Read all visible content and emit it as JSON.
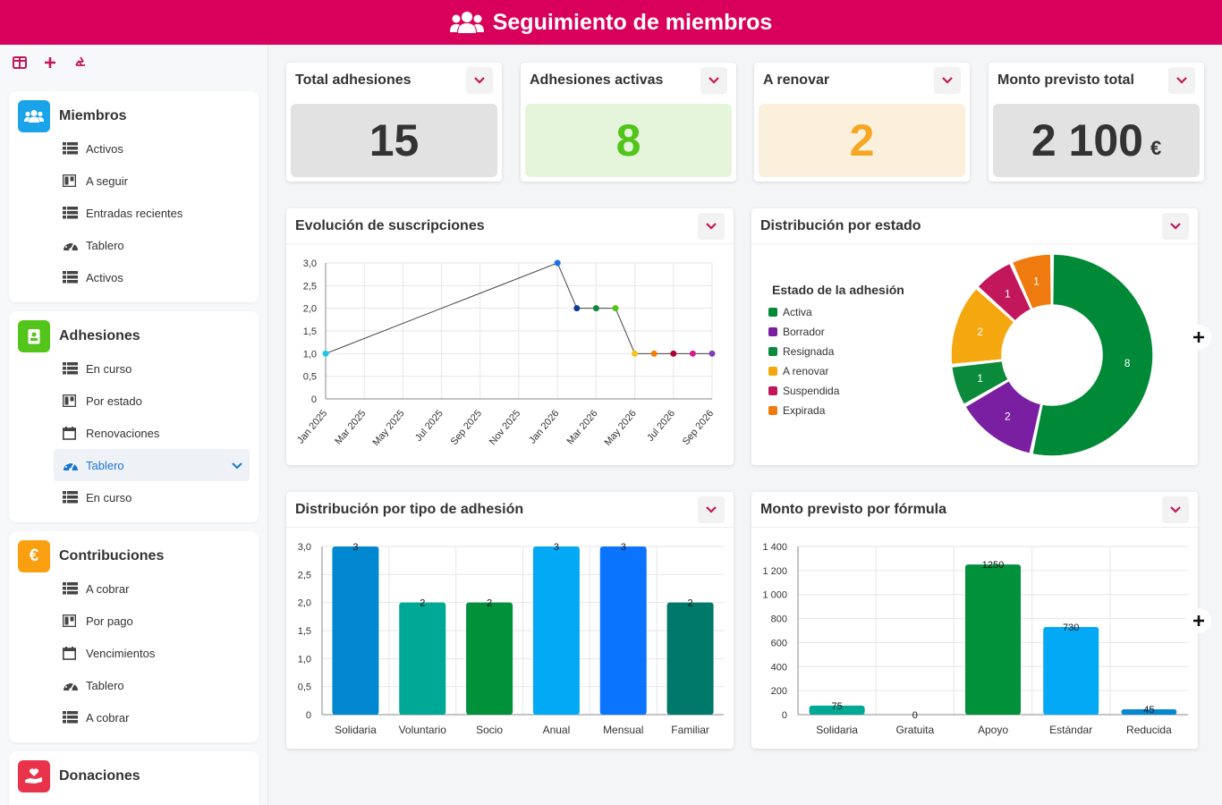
{
  "header": {
    "title": "Seguimiento de miembros"
  },
  "sidebar": {
    "sections": [
      {
        "title": "Miembros",
        "color": "#1aa3e8",
        "icon": "users-icon",
        "items": [
          {
            "label": "Activos",
            "icon": "table-icon"
          },
          {
            "label": "A seguir",
            "icon": "kanban-icon"
          },
          {
            "label": "Entradas recientes",
            "icon": "table-icon"
          },
          {
            "label": "Tablero",
            "icon": "dashboard-icon"
          },
          {
            "label": "Activos",
            "icon": "table-icon"
          }
        ]
      },
      {
        "title": "Adhesiones",
        "color": "#52c41a",
        "icon": "id-card-icon",
        "items": [
          {
            "label": "En curso",
            "icon": "table-icon"
          },
          {
            "label": "Por estado",
            "icon": "kanban-icon"
          },
          {
            "label": "Renovaciones",
            "icon": "calendar-icon"
          },
          {
            "label": "Tablero",
            "icon": "dashboard-icon",
            "active": true
          },
          {
            "label": "En curso",
            "icon": "table-icon"
          }
        ]
      },
      {
        "title": "Contribuciones",
        "color": "#fa9f10",
        "icon": "euro-icon",
        "items": [
          {
            "label": "A cobrar",
            "icon": "table-icon"
          },
          {
            "label": "Por pago",
            "icon": "kanban-icon"
          },
          {
            "label": "Vencimientos",
            "icon": "calendar-icon"
          },
          {
            "label": "Tablero",
            "icon": "dashboard-icon"
          },
          {
            "label": "A cobrar",
            "icon": "table-icon"
          }
        ]
      },
      {
        "title": "Donaciones",
        "color": "#e8334a",
        "icon": "donation-icon",
        "items": []
      }
    ]
  },
  "kpis": [
    {
      "title": "Total adhesiones",
      "value": "15",
      "unit": "",
      "bg": "#e2e2e2",
      "fg": "#333333"
    },
    {
      "title": "Adhesiones activas",
      "value": "8",
      "unit": "",
      "bg": "#e4f5dc",
      "fg": "#52c41a"
    },
    {
      "title": "A renovar",
      "value": "2",
      "unit": "",
      "bg": "#fbf0dc",
      "fg": "#f5a623"
    },
    {
      "title": "Monto previsto total",
      "value": "2 100",
      "unit": "€",
      "bg": "#e2e2e2",
      "fg": "#333333"
    }
  ],
  "charts": {
    "line_title": "Evolución de suscripciones",
    "donut_title": "Distribución por estado",
    "bar1_title": "Distribución por tipo de adhesión",
    "bar2_title": "Monto previsto por fórmula"
  },
  "chart_data": [
    {
      "type": "line",
      "x_ticks": [
        "Jan 2025",
        "Mar 2025",
        "May 2025",
        "Jul 2025",
        "Sep 2025",
        "Nov 2025",
        "Jan 2026",
        "Mar 2026",
        "May 2026",
        "Jul 2026",
        "Sep 2026"
      ],
      "points": [
        {
          "x": "2025-01",
          "y": 1,
          "color": "#1ec8e8"
        },
        {
          "x": "2026-01",
          "y": 3,
          "color": "#1a73e8"
        },
        {
          "x": "2026-02",
          "y": 2,
          "color": "#0d3c91"
        },
        {
          "x": "2026-03",
          "y": 2,
          "color": "#0b8a3b"
        },
        {
          "x": "2026-04",
          "y": 2,
          "color": "#52c41a"
        },
        {
          "x": "2026-05",
          "y": 1,
          "color": "#f5c518"
        },
        {
          "x": "2026-06",
          "y": 1,
          "color": "#f57c00"
        },
        {
          "x": "2026-07",
          "y": 1,
          "color": "#b0003a"
        },
        {
          "x": "2026-08",
          "y": 1,
          "color": "#d81b8a"
        },
        {
          "x": "2026-09",
          "y": 1,
          "color": "#7b3fb5"
        }
      ],
      "ylim": [
        0,
        3
      ],
      "y_ticks": [
        "0",
        "0,5",
        "1,0",
        "1,5",
        "2,0",
        "2,5",
        "3,0"
      ]
    },
    {
      "type": "pie",
      "legend_title": "Estado de la adhesión",
      "slices": [
        {
          "label": "Activa",
          "value": 8,
          "color": "#008a37"
        },
        {
          "label": "Borrador",
          "value": 2,
          "color": "#7b1fa2"
        },
        {
          "label": "Resignada",
          "value": 1,
          "color": "#0a8a3a"
        },
        {
          "label": "A renovar",
          "value": 2,
          "color": "#f5a70f"
        },
        {
          "label": "Suspendida",
          "value": 1,
          "color": "#c2185b"
        },
        {
          "label": "Expirada",
          "value": 1,
          "color": "#ef7b10"
        }
      ]
    },
    {
      "type": "bar",
      "categories": [
        "Solidaria",
        "Voluntario",
        "Socio",
        "Anual",
        "Mensual",
        "Familiar"
      ],
      "values": [
        3,
        2,
        2,
        3,
        3,
        2
      ],
      "colors": [
        "#0288d1",
        "#00a896",
        "#00913a",
        "#03a9f4",
        "#0a74ff",
        "#00796b"
      ],
      "ylim": [
        0,
        3
      ],
      "y_ticks": [
        "0",
        "0,5",
        "1,0",
        "1,5",
        "2,0",
        "2,5",
        "3,0"
      ]
    },
    {
      "type": "bar",
      "categories": [
        "Solidaria",
        "Gratuita",
        "Apoyo",
        "Estándar",
        "Reducida"
      ],
      "values": [
        75,
        0,
        1250,
        730,
        45
      ],
      "colors": [
        "#00a896",
        "#00a896",
        "#00913a",
        "#03a9f4",
        "#0288d1"
      ],
      "ylim": [
        0,
        1400
      ],
      "y_ticks": [
        "0",
        "200",
        "400",
        "600",
        "800",
        "1 000",
        "1 200",
        "1 400"
      ]
    }
  ]
}
